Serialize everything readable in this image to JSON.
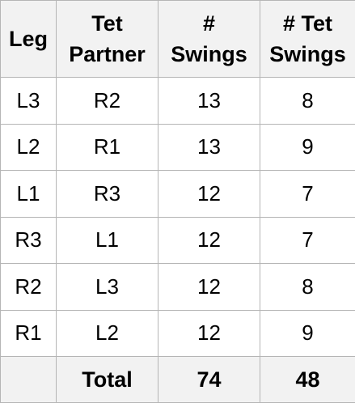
{
  "table": {
    "headers": [
      {
        "lines": [
          "Leg"
        ]
      },
      {
        "lines": [
          "Tet",
          "Partner"
        ]
      },
      {
        "lines": [
          "#",
          "Swings"
        ]
      },
      {
        "lines": [
          "# Tet",
          "Swings"
        ]
      }
    ],
    "rows": [
      [
        "L3",
        "R2",
        "13",
        "8"
      ],
      [
        "L2",
        "R1",
        "13",
        "9"
      ],
      [
        "L1",
        "R3",
        "12",
        "7"
      ],
      [
        "R3",
        "L1",
        "12",
        "7"
      ],
      [
        "R2",
        "L3",
        "12",
        "8"
      ],
      [
        "R1",
        "L2",
        "12",
        "9"
      ]
    ],
    "footer": [
      "",
      "Total",
      "74",
      "48"
    ]
  }
}
